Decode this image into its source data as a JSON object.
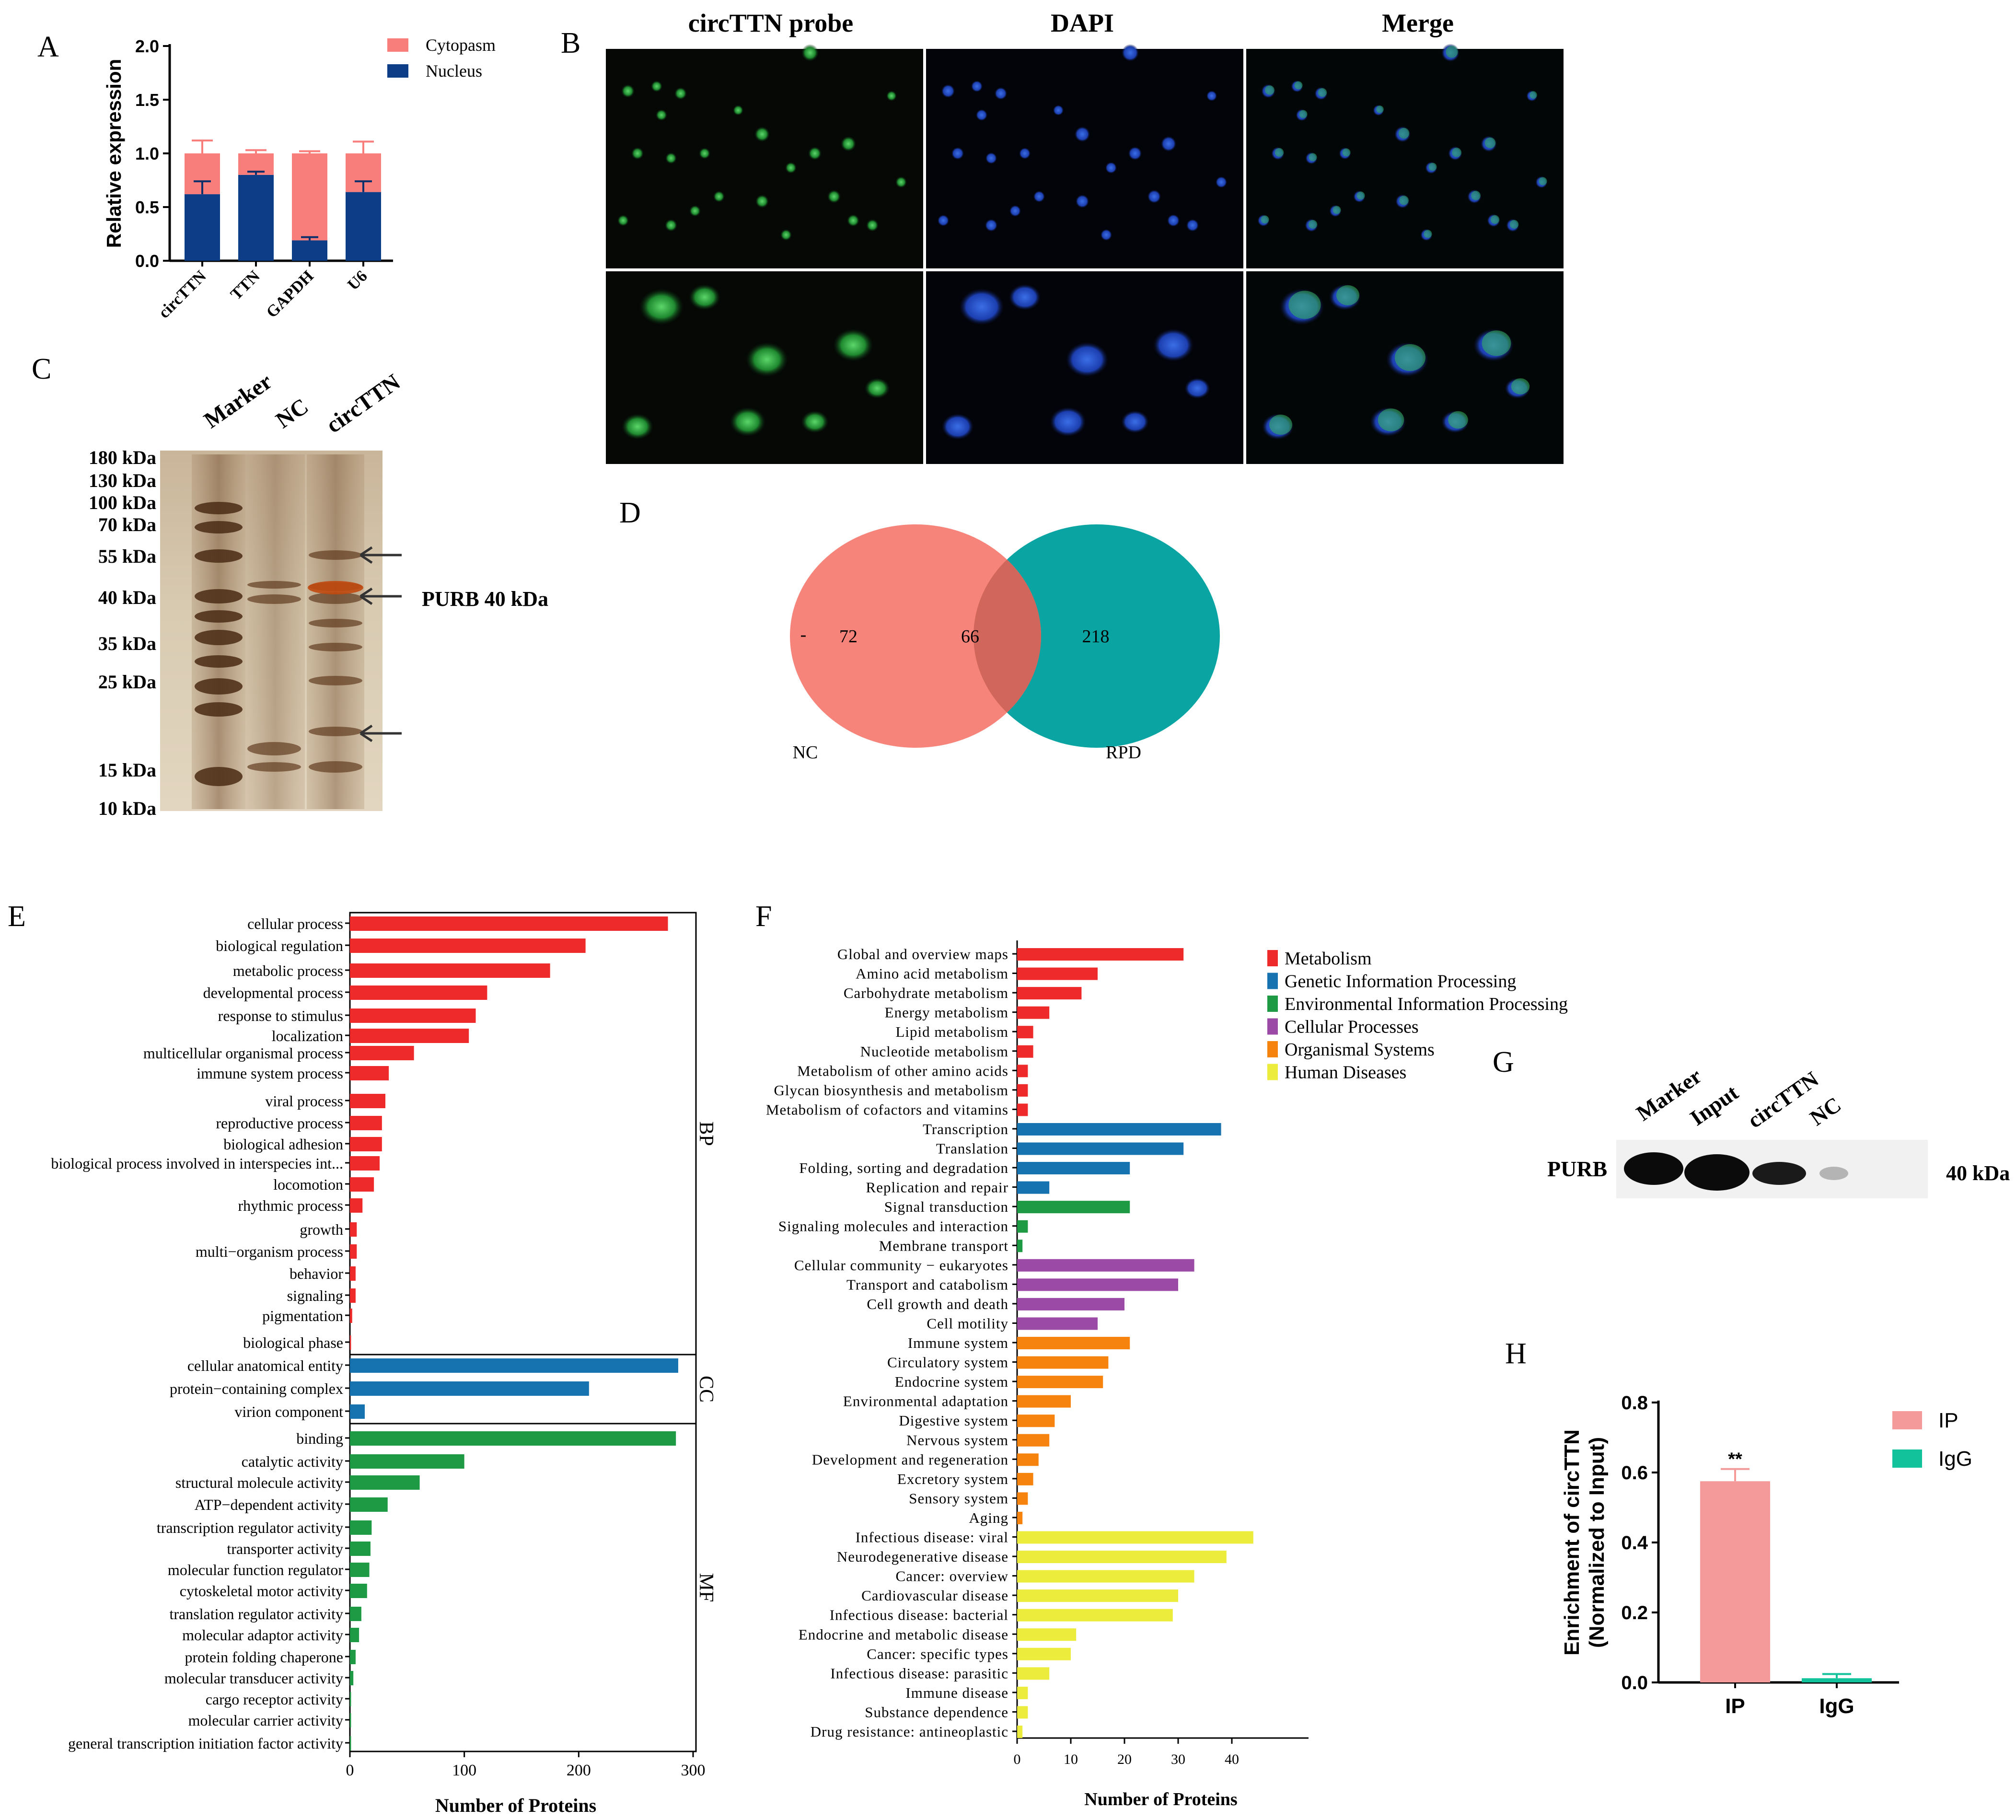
{
  "panels": {
    "A": "A",
    "B": "B",
    "C": "C",
    "D": "D",
    "E": "E",
    "F": "F",
    "G": "G",
    "H": "H"
  },
  "colors": {
    "cytoplasm": "#f77e7b",
    "nucleus": "#0c3d86",
    "red": "#ef2a2a",
    "blue": "#1673b0",
    "green": "#1f9a44",
    "purple": "#9b4aa6",
    "orange": "#f7830f",
    "yellow": "#ecec3c",
    "ip": "#f59a9a",
    "igg": "#12c29a",
    "venn_nc": "#f7847a",
    "venn_rpd": "#0aa5a3"
  },
  "panel_b": {
    "headers": [
      "circTTN probe",
      "DAPI",
      "Merge"
    ]
  },
  "panel_c": {
    "lanes": [
      "Marker",
      "NC",
      "circTTN"
    ],
    "markers": [
      "180 kDa",
      "130 kDa",
      "100 kDa",
      "70 kDa",
      "55 kDa",
      "40 kDa",
      "35 kDa",
      "25 kDa",
      "15 kDa",
      "10 kDa"
    ],
    "annotation": "PURB 40 kDa"
  },
  "panel_g": {
    "lanes": [
      "Marker",
      "Input",
      "circTTN",
      "NC"
    ],
    "row_label": "PURB",
    "size_label": "40 kDa"
  },
  "chart_data": [
    {
      "panel": "A",
      "type": "bar",
      "stacked": true,
      "categories": [
        "circTTN",
        "TTN",
        "GAPDH",
        "U6"
      ],
      "series": [
        {
          "name": "Cytopasm",
          "values": [
            0.38,
            0.2,
            0.81,
            0.36
          ],
          "errors": [
            0.12,
            0.03,
            0.02,
            0.11
          ]
        },
        {
          "name": "Nucleus",
          "values": [
            0.62,
            0.8,
            0.19,
            0.64
          ],
          "errors": [
            0.12,
            0.03,
            0.03,
            0.1
          ]
        }
      ],
      "ylabel": "Relative expression",
      "ylim": [
        0,
        2.0
      ],
      "yticks": [
        "0.0",
        "0.5",
        "1.0",
        "1.5",
        "2.0"
      ],
      "legend": "top-right"
    },
    {
      "panel": "D",
      "type": "venn",
      "sets": [
        "NC",
        "RPD"
      ],
      "values": {
        "only_nc": "72",
        "both": "66",
        "only_rpd": "218"
      },
      "stray_mark": "-"
    },
    {
      "panel": "E",
      "type": "bar",
      "orientation": "horizontal",
      "xlabel": "Number of Proteins",
      "xlim": [
        0,
        300
      ],
      "xticks": [
        "0",
        "100",
        "200",
        "300"
      ],
      "groups": [
        {
          "name": "BP",
          "items": [
            {
              "label": "cellular process",
              "value": 278
            },
            {
              "label": "biological regulation",
              "value": 206
            },
            {
              "label": "metabolic process",
              "value": 175
            },
            {
              "label": "developmental process",
              "value": 120
            },
            {
              "label": "response to stimulus",
              "value": 110
            },
            {
              "label": "localization",
              "value": 104
            },
            {
              "label": "multicellular organismal process",
              "value": 56
            },
            {
              "label": "immune system process",
              "value": 34
            },
            {
              "label": "viral process",
              "value": 31
            },
            {
              "label": "reproductive process",
              "value": 28
            },
            {
              "label": "biological adhesion",
              "value": 28
            },
            {
              "label": "biological process involved in interspecies int...",
              "value": 26
            },
            {
              "label": "locomotion",
              "value": 21
            },
            {
              "label": "rhythmic process",
              "value": 11
            },
            {
              "label": "growth",
              "value": 6
            },
            {
              "label": "multi−organism process",
              "value": 6
            },
            {
              "label": "behavior",
              "value": 5
            },
            {
              "label": "signaling",
              "value": 5
            },
            {
              "label": "pigmentation",
              "value": 2
            },
            {
              "label": "biological phase",
              "value": 1
            }
          ]
        },
        {
          "name": "CC",
          "items": [
            {
              "label": "cellular anatomical entity",
              "value": 287
            },
            {
              "label": "protein−containing complex",
              "value": 209
            },
            {
              "label": "virion component",
              "value": 13
            }
          ]
        },
        {
          "name": "MF",
          "items": [
            {
              "label": "binding",
              "value": 285
            },
            {
              "label": "catalytic activity",
              "value": 100
            },
            {
              "label": "structural molecule activity",
              "value": 61
            },
            {
              "label": "ATP−dependent activity",
              "value": 33
            },
            {
              "label": "transcription regulator activity",
              "value": 19
            },
            {
              "label": "transporter activity",
              "value": 18
            },
            {
              "label": "molecular function regulator",
              "value": 17
            },
            {
              "label": "cytoskeletal motor activity",
              "value": 15
            },
            {
              "label": "translation regulator activity",
              "value": 10
            },
            {
              "label": "molecular adaptor activity",
              "value": 8
            },
            {
              "label": "protein folding chaperone",
              "value": 5
            },
            {
              "label": "molecular transducer activity",
              "value": 3
            },
            {
              "label": "cargo receptor activity",
              "value": 1
            },
            {
              "label": "molecular carrier activity",
              "value": 1
            },
            {
              "label": "general transcription initiation factor activity",
              "value": 1
            }
          ]
        }
      ]
    },
    {
      "panel": "F",
      "type": "bar",
      "orientation": "horizontal",
      "xlabel": "Number of Proteins",
      "xlim": [
        0,
        48
      ],
      "xticks": [
        "0",
        "10",
        "20",
        "30",
        "40"
      ],
      "legend": "top-right",
      "categories_legend": [
        {
          "name": "Metabolism",
          "color": "red"
        },
        {
          "name": "Genetic Information Processing",
          "color": "blue"
        },
        {
          "name": "Environmental Information Processing",
          "color": "green"
        },
        {
          "name": "Cellular Processes",
          "color": "purple"
        },
        {
          "name": "Organismal Systems",
          "color": "orange"
        },
        {
          "name": "Human Diseases",
          "color": "yellow"
        }
      ],
      "items": [
        {
          "label": "Global and overview maps",
          "value": 31,
          "cat": "red"
        },
        {
          "label": "Amino acid metabolism",
          "value": 15,
          "cat": "red"
        },
        {
          "label": "Carbohydrate metabolism",
          "value": 12,
          "cat": "red"
        },
        {
          "label": "Energy metabolism",
          "value": 6,
          "cat": "red"
        },
        {
          "label": "Lipid metabolism",
          "value": 3,
          "cat": "red"
        },
        {
          "label": "Nucleotide metabolism",
          "value": 3,
          "cat": "red"
        },
        {
          "label": "Metabolism of other amino acids",
          "value": 2,
          "cat": "red"
        },
        {
          "label": "Glycan biosynthesis and metabolism",
          "value": 2,
          "cat": "red"
        },
        {
          "label": "Metabolism of cofactors and vitamins",
          "value": 2,
          "cat": "red"
        },
        {
          "label": "Transcription",
          "value": 38,
          "cat": "blue"
        },
        {
          "label": "Translation",
          "value": 31,
          "cat": "blue"
        },
        {
          "label": "Folding, sorting and degradation",
          "value": 21,
          "cat": "blue"
        },
        {
          "label": "Replication and repair",
          "value": 6,
          "cat": "blue"
        },
        {
          "label": "Signal transduction",
          "value": 21,
          "cat": "green"
        },
        {
          "label": "Signaling molecules and interaction",
          "value": 2,
          "cat": "green"
        },
        {
          "label": "Membrane transport",
          "value": 1,
          "cat": "green"
        },
        {
          "label": "Cellular community − eukaryotes",
          "value": 33,
          "cat": "purple"
        },
        {
          "label": "Transport and catabolism",
          "value": 30,
          "cat": "purple"
        },
        {
          "label": "Cell growth and death",
          "value": 20,
          "cat": "purple"
        },
        {
          "label": "Cell motility",
          "value": 15,
          "cat": "purple"
        },
        {
          "label": "Immune system",
          "value": 21,
          "cat": "orange"
        },
        {
          "label": "Circulatory system",
          "value": 17,
          "cat": "orange"
        },
        {
          "label": "Endocrine system",
          "value": 16,
          "cat": "orange"
        },
        {
          "label": "Environmental adaptation",
          "value": 10,
          "cat": "orange"
        },
        {
          "label": "Digestive system",
          "value": 7,
          "cat": "orange"
        },
        {
          "label": "Nervous system",
          "value": 6,
          "cat": "orange"
        },
        {
          "label": "Development and regeneration",
          "value": 4,
          "cat": "orange"
        },
        {
          "label": "Excretory system",
          "value": 3,
          "cat": "orange"
        },
        {
          "label": "Sensory system",
          "value": 2,
          "cat": "orange"
        },
        {
          "label": "Aging",
          "value": 1,
          "cat": "orange"
        },
        {
          "label": "Infectious disease: viral",
          "value": 44,
          "cat": "yellow"
        },
        {
          "label": "Neurodegenerative disease",
          "value": 39,
          "cat": "yellow"
        },
        {
          "label": "Cancer: overview",
          "value": 33,
          "cat": "yellow"
        },
        {
          "label": "Cardiovascular disease",
          "value": 30,
          "cat": "yellow"
        },
        {
          "label": "Infectious disease: bacterial",
          "value": 29,
          "cat": "yellow"
        },
        {
          "label": "Endocrine and metabolic disease",
          "value": 11,
          "cat": "yellow"
        },
        {
          "label": "Cancer: specific types",
          "value": 10,
          "cat": "yellow"
        },
        {
          "label": "Infectious disease: parasitic",
          "value": 6,
          "cat": "yellow"
        },
        {
          "label": "Immune disease",
          "value": 2,
          "cat": "yellow"
        },
        {
          "label": "Substance dependence",
          "value": 2,
          "cat": "yellow"
        },
        {
          "label": "Drug resistance: antineoplastic",
          "value": 1,
          "cat": "yellow"
        }
      ]
    },
    {
      "panel": "H",
      "type": "bar",
      "categories": [
        "IP",
        "IgG"
      ],
      "values": [
        0.575,
        0.012
      ],
      "errors": [
        0.035,
        0.012
      ],
      "significance": "**",
      "ylabel": [
        "Enrichment of circTTN",
        "(Normalized to Input)"
      ],
      "ylim": [
        0,
        0.8
      ],
      "yticks": [
        "0.0",
        "0.2",
        "0.4",
        "0.6",
        "0.8"
      ],
      "legend": "top-right"
    }
  ]
}
